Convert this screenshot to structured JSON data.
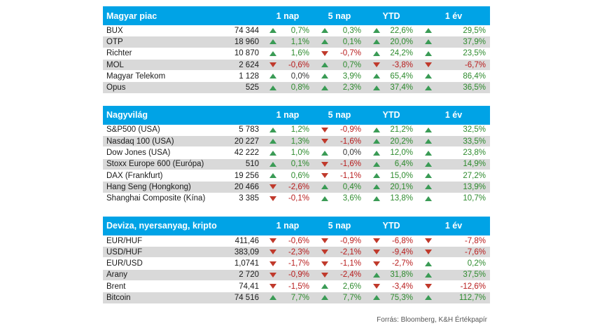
{
  "columns": [
    "1 nap",
    "5 nap",
    "YTD",
    "1 év"
  ],
  "sections": [
    {
      "title": "Magyar piac",
      "rows": [
        {
          "name": "BUX",
          "value": "74 344",
          "changes": [
            "0,7%",
            "0,3%",
            "22,6%",
            "29,5%"
          ]
        },
        {
          "name": "OTP",
          "value": "18 960",
          "changes": [
            "1,1%",
            "0,1%",
            "20,0%",
            "37,9%"
          ]
        },
        {
          "name": "Richter",
          "value": "10 870",
          "changes": [
            "1,6%",
            "-0,7%",
            "24,2%",
            "23,5%"
          ]
        },
        {
          "name": "MOL",
          "value": "2 624",
          "changes": [
            "-0,6%",
            "0,7%",
            "-3,8%",
            "-6,7%"
          ]
        },
        {
          "name": "Magyar Telekom",
          "value": "1 128",
          "changes": [
            "0,0%",
            "3,9%",
            "65,4%",
            "86,4%"
          ]
        },
        {
          "name": "Opus",
          "value": "525",
          "changes": [
            "0,8%",
            "2,3%",
            "37,4%",
            "36,5%"
          ]
        }
      ]
    },
    {
      "title": "Nagyvilág",
      "rows": [
        {
          "name": "S&P500 (USA)",
          "value": "5 783",
          "changes": [
            "1,2%",
            "-0,9%",
            "21,2%",
            "32,5%"
          ]
        },
        {
          "name": "Nasdaq 100 (USA)",
          "value": "20 227",
          "changes": [
            "1,3%",
            "-1,6%",
            "20,2%",
            "33,5%"
          ]
        },
        {
          "name": "Dow Jones (USA)",
          "value": "42 222",
          "changes": [
            "1,0%",
            "0,0%",
            "12,0%",
            "23,8%"
          ]
        },
        {
          "name": "Stoxx Europe 600 (Európa)",
          "value": "510",
          "changes": [
            "0,1%",
            "-1,6%",
            "6,4%",
            "14,9%"
          ]
        },
        {
          "name": "DAX (Frankfurt)",
          "value": "19 256",
          "changes": [
            "0,6%",
            "-1,1%",
            "15,0%",
            "27,2%"
          ]
        },
        {
          "name": "Hang Seng (Hongkong)",
          "value": "20 466",
          "changes": [
            "-2,6%",
            "0,4%",
            "20,1%",
            "13,9%"
          ]
        },
        {
          "name": "Shanghai Composite (Kína)",
          "value": "3 385",
          "changes": [
            "-0,1%",
            "3,6%",
            "13,8%",
            "10,7%"
          ]
        }
      ]
    },
    {
      "title": "Deviza, nyersanyag, kripto",
      "rows": [
        {
          "name": "EUR/HUF",
          "value": "411,46",
          "changes": [
            "-0,6%",
            "-0,9%",
            "-6,8%",
            "-7,8%"
          ]
        },
        {
          "name": "USD/HUF",
          "value": "383,09",
          "changes": [
            "-2,3%",
            "-2,1%",
            "-9,4%",
            "-7,6%"
          ]
        },
        {
          "name": "EUR/USD",
          "value": "1,0741",
          "changes": [
            "-1,7%",
            "-1,1%",
            "-2,7%",
            "0,2%"
          ]
        },
        {
          "name": "Arany",
          "value": "2 720",
          "changes": [
            "-0,9%",
            "-2,4%",
            "31,8%",
            "37,5%"
          ]
        },
        {
          "name": "Brent",
          "value": "74,41",
          "changes": [
            "-1,5%",
            "2,6%",
            "-3,4%",
            "-12,6%"
          ]
        },
        {
          "name": "Bitcoin",
          "value": "74 516",
          "changes": [
            "7,7%",
            "7,7%",
            "75,3%",
            "112,7%"
          ]
        }
      ]
    }
  ],
  "source": "Forrás: Bloomberg, K&H Értékpapír",
  "colors": {
    "header": "#00a3e6",
    "up": "#3a9b55",
    "down": "#c0392b",
    "shade": "#d9d9d9"
  }
}
